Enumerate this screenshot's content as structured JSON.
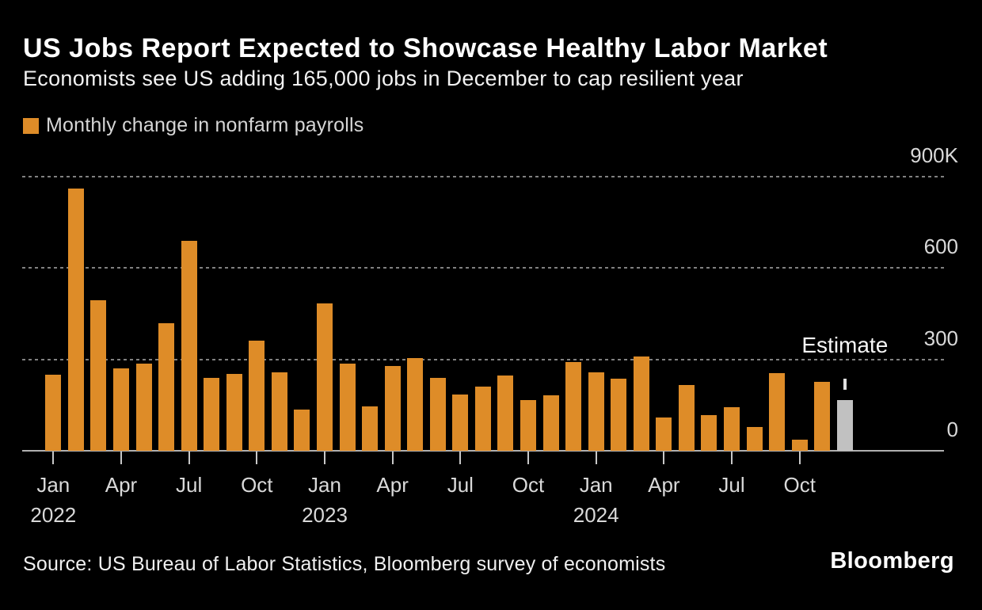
{
  "header": {
    "title": "US Jobs Report Expected to Showcase Healthy Labor Market",
    "subtitle": "Economists see US adding 165,000 jobs in December to cap resilient year"
  },
  "legend": {
    "label": "Monthly change in nonfarm payrolls",
    "swatch_color": "#de8c28"
  },
  "chart_data": {
    "type": "bar",
    "title": "Monthly change in nonfarm payrolls",
    "unit": "thousands of jobs (K)",
    "categories": [
      "Jan 2022",
      "Feb 2022",
      "Mar 2022",
      "Apr 2022",
      "May 2022",
      "Jun 2022",
      "Jul 2022",
      "Aug 2022",
      "Sep 2022",
      "Oct 2022",
      "Nov 2022",
      "Dec 2022",
      "Jan 2023",
      "Feb 2023",
      "Mar 2023",
      "Apr 2023",
      "May 2023",
      "Jun 2023",
      "Jul 2023",
      "Aug 2023",
      "Sep 2023",
      "Oct 2023",
      "Nov 2023",
      "Dec 2023",
      "Jan 2024",
      "Feb 2024",
      "Mar 2024",
      "Apr 2024",
      "May 2024",
      "Jun 2024",
      "Jul 2024",
      "Aug 2024",
      "Sep 2024",
      "Oct 2024",
      "Nov 2024",
      "Dec 2024"
    ],
    "values": [
      250,
      860,
      493,
      271,
      285,
      419,
      689,
      240,
      253,
      360,
      257,
      136,
      482,
      287,
      146,
      278,
      303,
      240,
      184,
      210,
      246,
      165,
      182,
      290,
      256,
      236,
      310,
      108,
      216,
      118,
      144,
      78,
      255,
      36,
      227,
      165
    ],
    "estimate_index": 35,
    "annotation": {
      "label": "Estimate",
      "target": "Dec 2024",
      "value": 165
    },
    "ylim": [
      0,
      900
    ],
    "yticks": [
      {
        "value": 0,
        "label": "0"
      },
      {
        "value": 300,
        "label": "300"
      },
      {
        "value": 600,
        "label": "600"
      },
      {
        "value": 900,
        "label": "900K"
      }
    ],
    "xtick_every": 3,
    "xtick_major_month": "Jan",
    "grid": "horizontal-dashed",
    "legend_position": "top-left",
    "colors": {
      "bar": "#de8c28",
      "estimate_bar": "#c1c1c1",
      "grid": "#818181",
      "axis": "#b0b0b0",
      "tick_text": "#d9d9d9"
    }
  },
  "footer": {
    "source": "Source: US Bureau of Labor Statistics, Bloomberg survey of economists",
    "brand": "Bloomberg"
  }
}
